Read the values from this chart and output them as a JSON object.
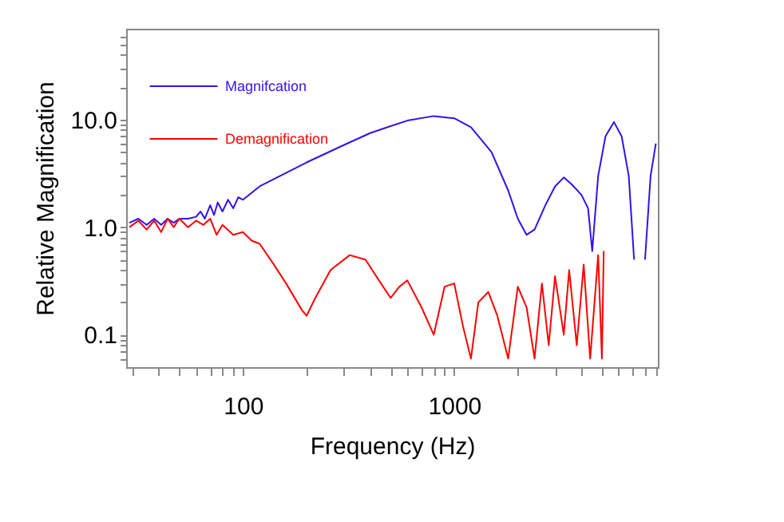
{
  "chart_data": {
    "type": "line",
    "xlabel": "Frequency (Hz)",
    "ylabel": "Relative Magnification",
    "log": "xy",
    "grid": false,
    "legend": "top left",
    "marker": "none",
    "line_style": "solid",
    "xlim": [
      28,
      9200
    ],
    "ylim": [
      0.05,
      70
    ],
    "xticks": [
      {
        "value": 30,
        "label": null
      },
      {
        "value": 40,
        "label": null
      },
      {
        "value": 50,
        "label": null
      },
      {
        "value": 60,
        "label": null
      },
      {
        "value": 70,
        "label": null
      },
      {
        "value": 80,
        "label": null
      },
      {
        "value": 90,
        "label": null
      },
      100,
      {
        "value": 200,
        "label": null
      },
      {
        "value": 300,
        "label": null
      },
      {
        "value": 400,
        "label": null
      },
      {
        "value": 500,
        "label": null
      },
      {
        "value": 600,
        "label": null
      },
      {
        "value": 700,
        "label": null
      },
      {
        "value": 800,
        "label": null
      },
      {
        "value": 900,
        "label": null
      },
      1000,
      {
        "value": 2000,
        "label": null
      },
      {
        "value": 3000,
        "label": null
      },
      {
        "value": 4000,
        "label": null
      },
      {
        "value": 5000,
        "label": null
      },
      {
        "value": 6000,
        "label": null
      },
      {
        "value": 7000,
        "label": null
      },
      {
        "value": 8000,
        "label": null
      },
      {
        "value": 9000,
        "label": null
      }
    ],
    "yticks": [
      {
        "value": 0.06,
        "label": null
      },
      {
        "value": 0.07,
        "label": null
      },
      {
        "value": 0.08,
        "label": null
      },
      {
        "value": 0.09,
        "label": null
      },
      {
        "value": 0.1,
        "label": "0.1"
      },
      {
        "value": 0.2,
        "label": null
      },
      {
        "value": 0.3,
        "label": null
      },
      {
        "value": 0.4,
        "label": null
      },
      {
        "value": 0.5,
        "label": null
      },
      {
        "value": 0.6,
        "label": null
      },
      {
        "value": 0.7,
        "label": null
      },
      {
        "value": 0.8,
        "label": null
      },
      {
        "value": 0.9,
        "label": null
      },
      {
        "value": 1,
        "label": "1.0"
      },
      {
        "value": 2,
        "label": null
      },
      {
        "value": 3,
        "label": null
      },
      {
        "value": 4,
        "label": null
      },
      {
        "value": 5,
        "label": null
      },
      {
        "value": 6,
        "label": null
      },
      {
        "value": 7,
        "label": null
      },
      {
        "value": 8,
        "label": null
      },
      {
        "value": 9,
        "label": null
      },
      {
        "value": 10,
        "label": "10.0"
      },
      {
        "value": 20,
        "label": null
      },
      {
        "value": 30,
        "label": null
      },
      {
        "value": 40,
        "label": null
      },
      {
        "value": 50,
        "label": null
      },
      {
        "value": 60,
        "label": null
      }
    ],
    "series": [
      {
        "name": "Magnifcation",
        "color": "#3311ee",
        "x": [
          29,
          32,
          35,
          38,
          41,
          44,
          47,
          50,
          55,
          60,
          63,
          66,
          70,
          73,
          76,
          80,
          85,
          90,
          95,
          100,
          120,
          150,
          200,
          300,
          400,
          500,
          600,
          800,
          1000,
          1200,
          1500,
          1800,
          2000,
          2200,
          2400,
          2700,
          3000,
          3300,
          3600,
          4000,
          4300,
          4500,
          4800,
          5200,
          5700,
          6200,
          6700,
          7100,
          7400,
          7700,
          8000,
          8500,
          9000
        ],
        "values": [
          1.1,
          1.2,
          1.05,
          1.2,
          1.05,
          1.2,
          1.1,
          1.2,
          1.2,
          1.25,
          1.4,
          1.2,
          1.6,
          1.3,
          1.7,
          1.4,
          1.8,
          1.5,
          1.9,
          1.8,
          2.4,
          3.0,
          4.0,
          5.8,
          7.5,
          8.7,
          9.8,
          10.8,
          10.3,
          8.5,
          5.0,
          2.2,
          1.2,
          0.85,
          0.95,
          1.6,
          2.4,
          2.9,
          2.5,
          2.0,
          1.5,
          0.6,
          3.0,
          7.0,
          9.5,
          7.0,
          3.0,
          0.5,
          null,
          null,
          0.5,
          3.0,
          6.0
        ]
      },
      {
        "name": "Demagnification",
        "color": "#ff0000",
        "x": [
          29,
          32,
          35,
          38,
          41,
          44,
          47,
          50,
          55,
          60,
          65,
          70,
          75,
          80,
          90,
          100,
          110,
          120,
          140,
          160,
          190,
          200,
          220,
          260,
          320,
          380,
          450,
          500,
          550,
          600,
          700,
          800,
          900,
          1000,
          1100,
          1200,
          1300,
          1450,
          1600,
          1800,
          2000,
          2200,
          2400,
          2600,
          2800,
          3000,
          3300,
          3500,
          3800,
          4100,
          4400,
          4800,
          5000,
          5100
        ],
        "values": [
          1.0,
          1.15,
          0.95,
          1.15,
          0.9,
          1.2,
          1.0,
          1.2,
          1.0,
          1.15,
          1.05,
          1.2,
          0.85,
          1.05,
          0.85,
          0.9,
          0.75,
          0.7,
          0.45,
          0.3,
          0.17,
          0.15,
          0.22,
          0.4,
          0.55,
          0.5,
          0.3,
          0.22,
          0.28,
          0.32,
          0.18,
          0.1,
          0.28,
          0.3,
          0.12,
          0.06,
          0.2,
          0.25,
          0.15,
          0.06,
          0.28,
          0.18,
          0.06,
          0.3,
          0.08,
          0.35,
          0.1,
          0.4,
          0.08,
          0.45,
          0.06,
          0.55,
          0.06,
          0.6
        ]
      }
    ]
  }
}
